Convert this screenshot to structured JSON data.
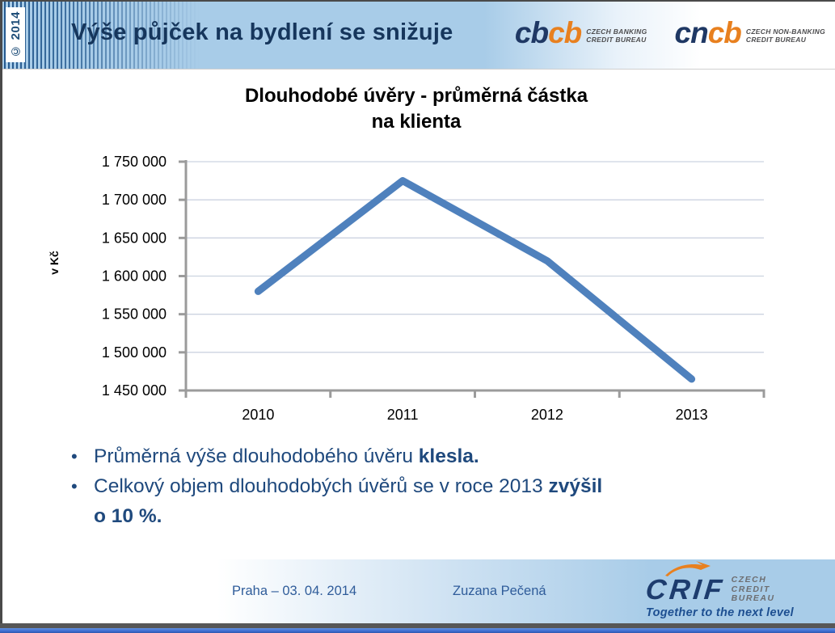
{
  "slide": {
    "copyright": "© 2014",
    "title": "Výše půjček na bydlení se snižuje",
    "bullet_char": "•"
  },
  "header_logos": {
    "cbcb": {
      "text_blue": "cb",
      "text_orange": "cb",
      "label_line1": "CZECH BANKING",
      "label_line2": "CREDIT BUREAU"
    },
    "cncb": {
      "text_blue": "cn",
      "text_orange": "cb",
      "label_line1": "CZECH NON-BANKING",
      "label_line2": "CREDIT BUREAU"
    }
  },
  "chart_data": {
    "type": "line",
    "title": "Dlouhodobé úvěry - průměrná částka na klienta",
    "title_line1": "Dlouhodobé  úvěry - průměrná částka",
    "title_line2": "na klienta",
    "categories": [
      "2010",
      "2011",
      "2012",
      "2013"
    ],
    "series": [
      {
        "name": "Dlouhodobé úvěry - průměrná částka na klienta",
        "values": [
          1580000,
          1725000,
          1620000,
          1465000
        ]
      }
    ],
    "xlabel": "",
    "ylabel": "v Kč",
    "ylim": [
      1450000,
      1750000
    ],
    "ytick_step": 50000,
    "ytick_labels": [
      "1 450 000",
      "1 500 000",
      "1 550 000",
      "1 600 000",
      "1 650 000",
      "1 700 000",
      "1 750 000"
    ],
    "grid": true,
    "legend": false,
    "line_color": "#4F81BD"
  },
  "bullets": [
    {
      "text": "Průměrná výše dlouhodobého úvěru ",
      "bold": "klesla."
    },
    {
      "text": "Celkový objem dlouhodobých úvěrů se v roce 2013 ",
      "bold": "zvýšil o 10 %."
    }
  ],
  "footer": {
    "place_date": "Praha – 03. 04. 2014",
    "author": "Zuzana Pečená",
    "crif": {
      "name": "CRIF",
      "label_line1": "CZECH",
      "label_line2": "CREDIT",
      "label_line3": "BUREAU",
      "tagline": "Together to the next level"
    }
  },
  "colors": {
    "header_bg": "#a8cce8",
    "title_text": "#16365c",
    "logo_blue": "#1f3864",
    "logo_orange": "#e8801f",
    "bullet_text": "#1f497d",
    "axis": "#9b9b9b",
    "gridline": "#ccd3e0",
    "line": "#4F81BD",
    "footer_text": "#2f5c9a",
    "bottom_bar_gray": "#575757",
    "bottom_bar_blue": "#3e6ed2"
  }
}
